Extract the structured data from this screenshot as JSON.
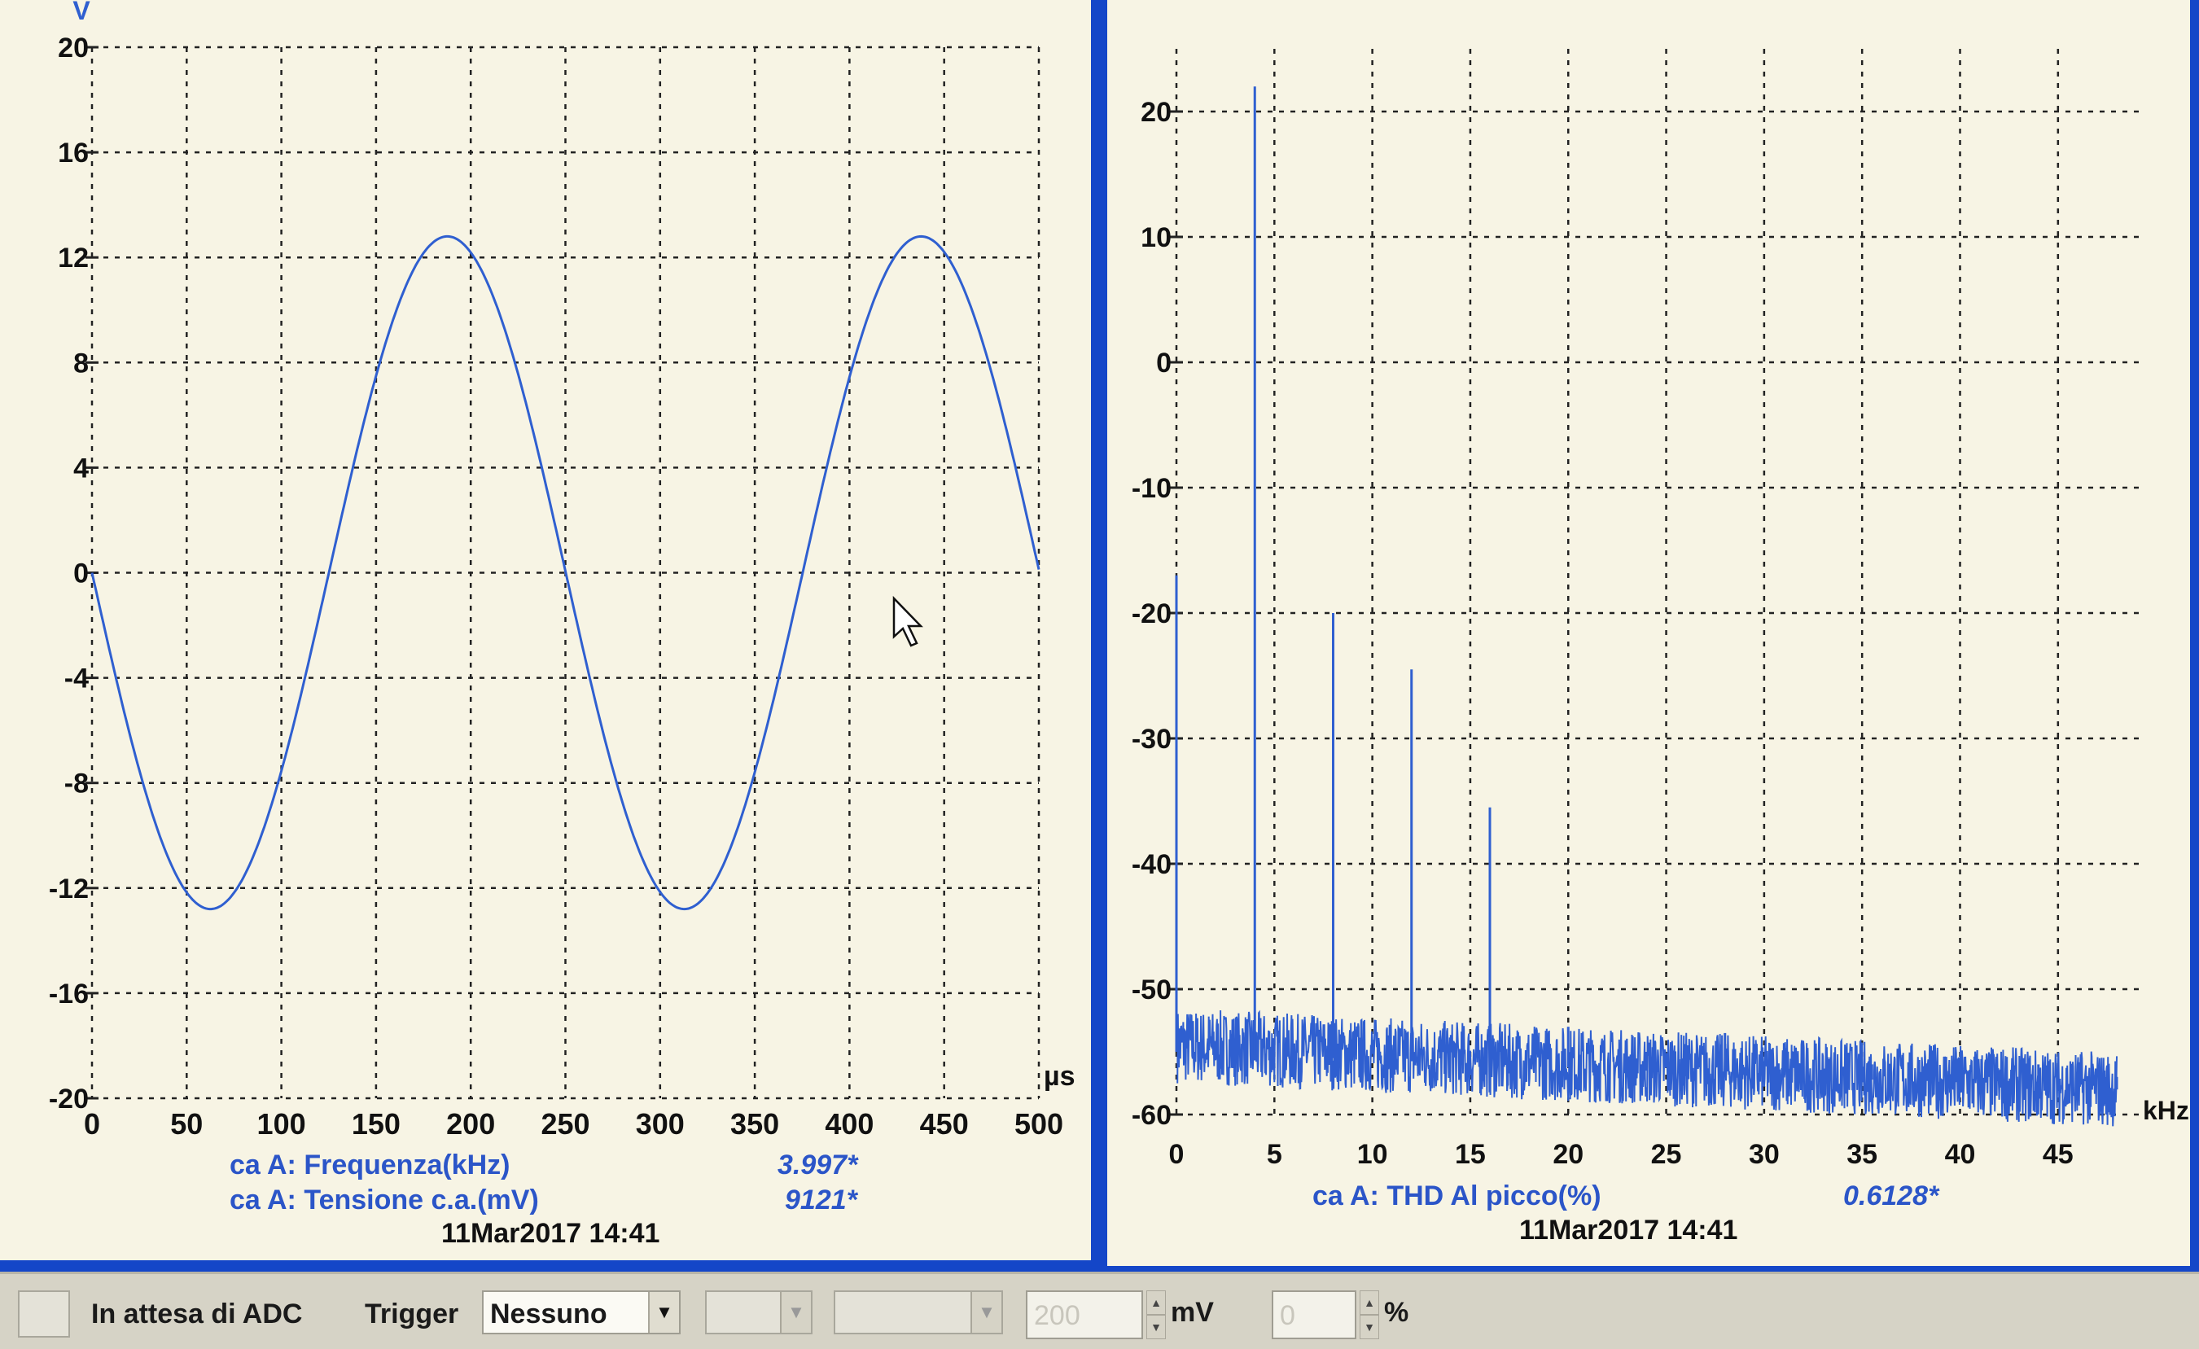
{
  "left_chart": {
    "y_unit": "V",
    "x_unit": "µs",
    "y_ticks": [
      "20",
      "16",
      "12",
      "8",
      "4",
      "0",
      "-4",
      "-8",
      "-12",
      "-16",
      "-20"
    ],
    "x_ticks": [
      "0",
      "50",
      "100",
      "150",
      "200",
      "250",
      "300",
      "350",
      "400",
      "450",
      "500"
    ],
    "measurements": [
      {
        "label": "ca A: Frequenza(kHz)",
        "value": "3.997*"
      },
      {
        "label": "ca A: Tensione c.a.(mV)",
        "value": "9121*"
      }
    ],
    "datetime": "11Mar2017  14:41"
  },
  "right_chart": {
    "x_unit": "kHz",
    "y_ticks": [
      "20",
      "10",
      "0",
      "-10",
      "-20",
      "-30",
      "-40",
      "-50",
      "-60"
    ],
    "x_ticks": [
      "0",
      "5",
      "10",
      "15",
      "20",
      "25",
      "30",
      "35",
      "40",
      "45"
    ],
    "measurements": [
      {
        "label": "ca A: THD Al picco(%)",
        "value": "0.6128*"
      }
    ],
    "datetime": "11Mar2017  14:41"
  },
  "statusbar": {
    "status_text": "In attesa di ADC",
    "trigger_label": "Trigger",
    "trigger_value": "Nessuno",
    "level_value": "200",
    "level_unit": "mV",
    "percent_value": "0",
    "percent_unit": "%"
  },
  "chart_data": [
    {
      "type": "line",
      "title": "",
      "xlabel": "µs",
      "ylabel": "V",
      "xlim": [
        0,
        500
      ],
      "ylim": [
        -20,
        20
      ],
      "grid": true,
      "series": [
        {
          "x": [
            0,
            25,
            65,
            125,
            190,
            250,
            315,
            375,
            440,
            500
          ],
          "y": [
            0,
            -8,
            -12.8,
            0,
            12.8,
            0,
            -12.8,
            0,
            12.8,
            1.2
          ]
        }
      ]
    },
    {
      "type": "line",
      "title": "",
      "xlabel": "kHz",
      "ylabel": "",
      "xlim": [
        0,
        48
      ],
      "ylim": [
        -60,
        25
      ],
      "grid": true,
      "series": [
        {
          "x": [
            0,
            4,
            8,
            12,
            16,
            20,
            24,
            28,
            32,
            35.5,
            40,
            44,
            48
          ],
          "y": [
            -17,
            22,
            -20,
            -24.5,
            -35.5,
            -53,
            -55,
            -53.5,
            -57,
            -56,
            -58,
            -56,
            -57
          ]
        }
      ]
    }
  ]
}
